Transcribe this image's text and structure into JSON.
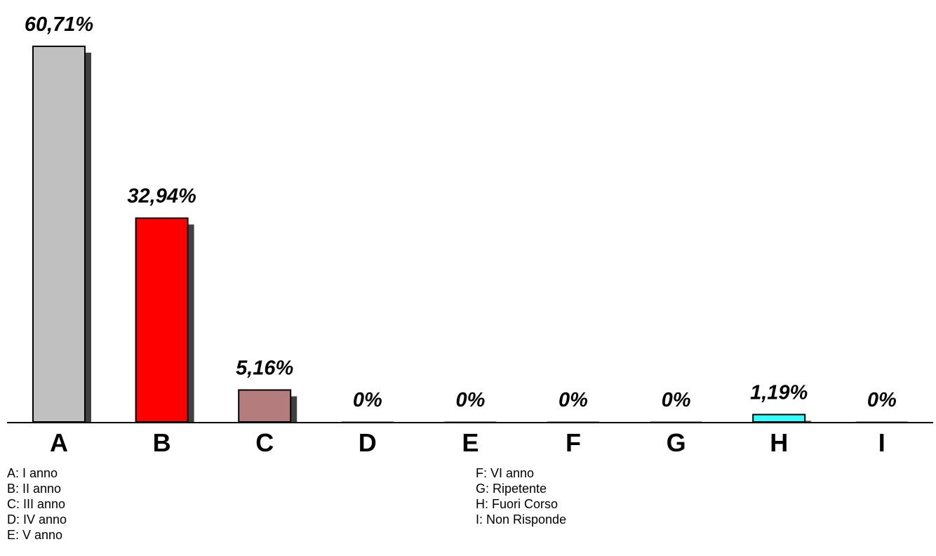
{
  "chart_data": {
    "type": "bar",
    "categories": [
      "A",
      "B",
      "C",
      "D",
      "E",
      "F",
      "G",
      "H",
      "I"
    ],
    "values": [
      60.71,
      32.94,
      5.16,
      0,
      0,
      0,
      0,
      1.19,
      0
    ],
    "value_labels": [
      "60,71%",
      "32,94%",
      "5,16%",
      "0%",
      "0%",
      "0%",
      "0%",
      "1,19%",
      "0%"
    ],
    "colors": [
      "#c0c0c0",
      "#ff0000",
      "#b47c7c",
      "#999999",
      "#999999",
      "#999999",
      "#999999",
      "#33ffff",
      "#999999"
    ],
    "ylim": [
      0,
      60.71
    ],
    "grid": false,
    "legend_position": "bottom"
  },
  "legend": {
    "left": [
      "A: I anno",
      "B: II anno",
      "C: III anno",
      "D: IV anno",
      "E: V anno"
    ],
    "right": [
      "F: VI anno",
      "G: Ripetente",
      "H: Fuori Corso",
      "I: Non Risponde"
    ]
  }
}
